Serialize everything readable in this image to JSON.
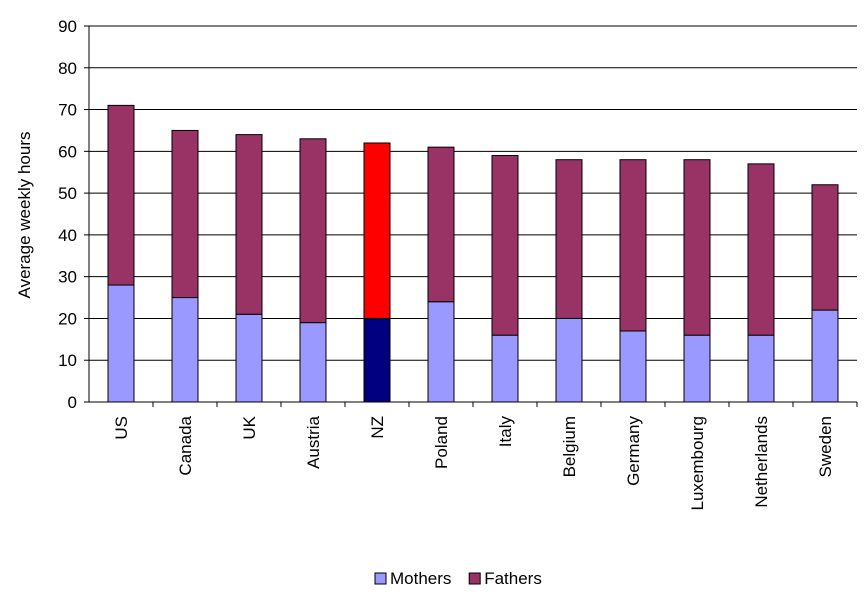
{
  "chart_data": {
    "type": "bar",
    "stacked": true,
    "categories": [
      "US",
      "Canada",
      "UK",
      "Austria",
      "NZ",
      "Poland",
      "Italy",
      "Belgium",
      "Germany",
      "Luxembourg",
      "Netherlands",
      "Sweden"
    ],
    "series": [
      {
        "name": "Mothers",
        "values": [
          28,
          25,
          21,
          19,
          20,
          24,
          16,
          20,
          17,
          16,
          16,
          22
        ],
        "color": "#9999ff"
      },
      {
        "name": "Fathers",
        "values": [
          43,
          40,
          43,
          44,
          42,
          37,
          43,
          38,
          41,
          42,
          41,
          30
        ],
        "color": "#993366"
      }
    ],
    "highlight": {
      "category": "NZ",
      "colors": {
        "Mothers": "#000080",
        "Fathers": "#ff0000"
      }
    },
    "ylabel": "Average weekly hours",
    "ylim": [
      0,
      90
    ],
    "yticks": [
      0,
      10,
      20,
      30,
      40,
      50,
      60,
      70,
      80,
      90
    ],
    "grid": true,
    "legend_position": "bottom"
  }
}
